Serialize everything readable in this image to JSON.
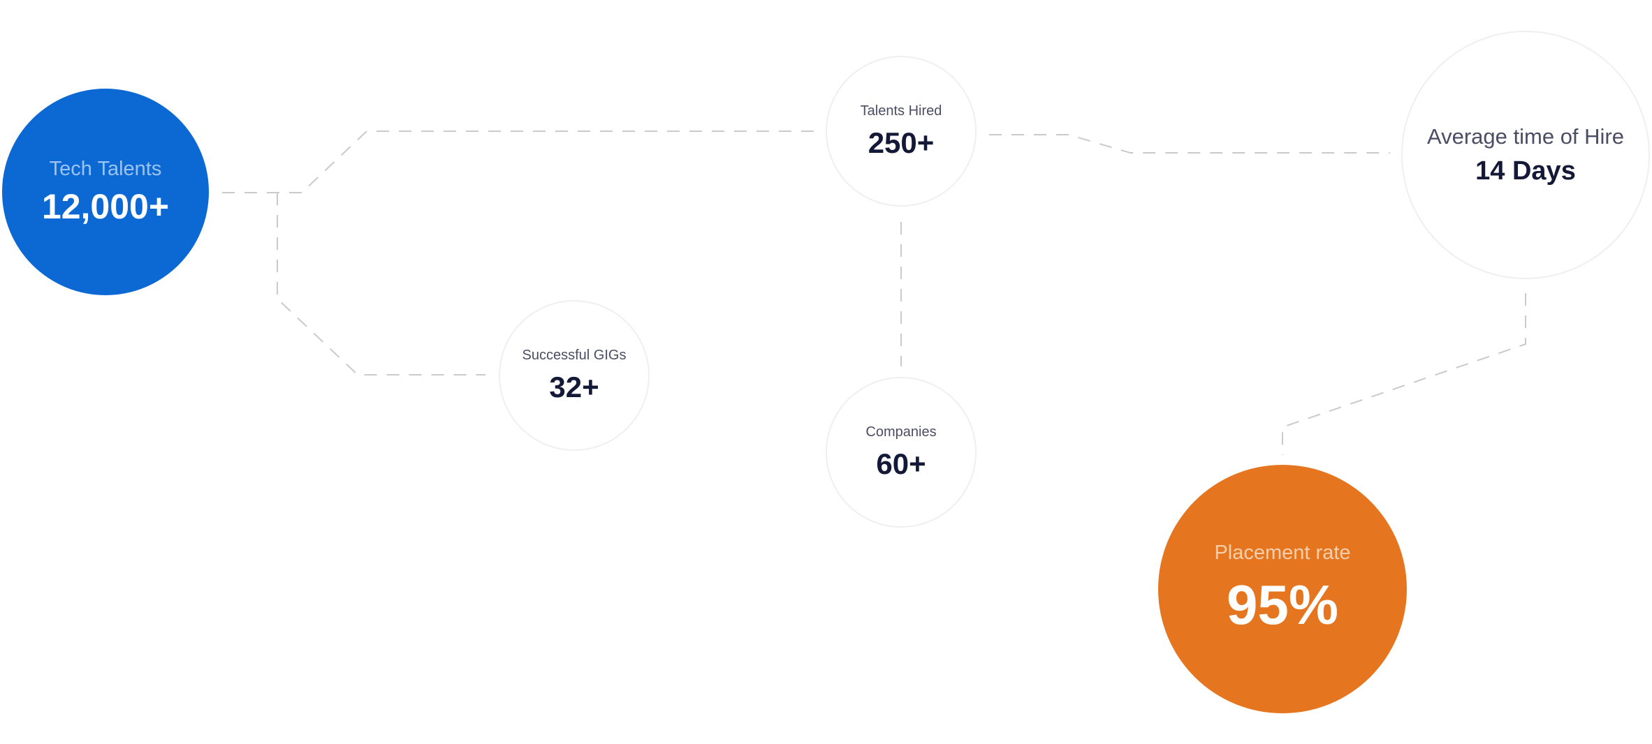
{
  "stats": {
    "tech_talents": {
      "label": "Tech Talents",
      "value": "12,000+"
    },
    "talents_hired": {
      "label": "Talents Hired",
      "value": "250+"
    },
    "successful_gigs": {
      "label": "Successful GIGs",
      "value": "32+"
    },
    "companies": {
      "label": "Companies",
      "value": "60+"
    },
    "average_time_of_hire": {
      "label": "Average time of Hire",
      "value": "14 Days"
    },
    "placement_rate": {
      "label": "Placement rate",
      "value": "95%"
    }
  },
  "colors": {
    "tech_talents_fill": "#0c69d4",
    "placement_rate_fill": "#e5761f",
    "connector": "#c9cacd",
    "outline": "#eeeff1",
    "value_text": "#141938"
  }
}
